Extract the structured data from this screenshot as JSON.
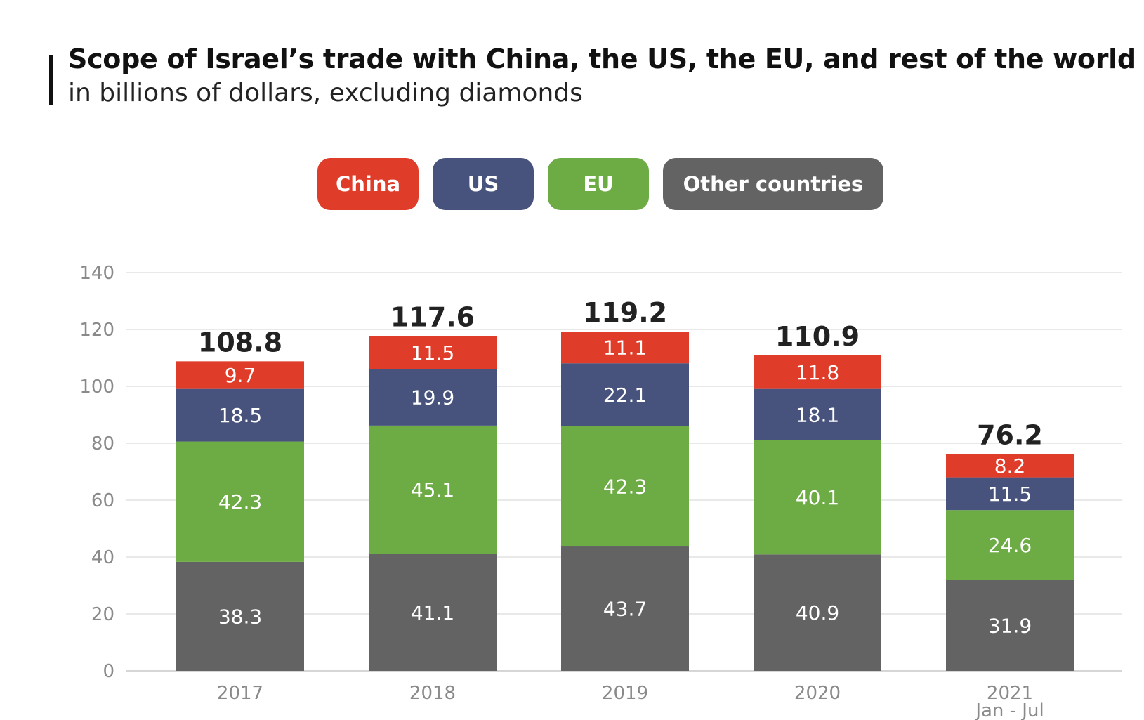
{
  "header": {
    "title": "Scope of Israel’s trade with China, the US, the EU, and rest of the world",
    "subtitle": "in billions of dollars, excluding diamonds"
  },
  "legend": {
    "items": [
      {
        "label": "China",
        "color": "#e03c2a"
      },
      {
        "label": "US",
        "color": "#47537c"
      },
      {
        "label": "EU",
        "color": "#6dab45"
      },
      {
        "label": "Other countries",
        "color": "#636363"
      }
    ]
  },
  "chart_data": {
    "type": "bar",
    "stacked": true,
    "categories": [
      "2017",
      "2018",
      "2019",
      "2020",
      "2021"
    ],
    "category_sublabels": [
      "",
      "",
      "",
      "",
      "Jan - Jul"
    ],
    "series": [
      {
        "name": "Other countries",
        "color": "#636363",
        "values": [
          38.3,
          41.1,
          43.7,
          40.9,
          31.9
        ]
      },
      {
        "name": "EU",
        "color": "#6dab45",
        "values": [
          42.3,
          45.1,
          42.3,
          40.1,
          24.6
        ]
      },
      {
        "name": "US",
        "color": "#47537c",
        "values": [
          18.5,
          19.9,
          22.1,
          18.1,
          11.5
        ]
      },
      {
        "name": "China",
        "color": "#e03c2a",
        "values": [
          9.7,
          11.5,
          11.1,
          11.8,
          8.2
        ]
      }
    ],
    "totals": [
      "108.8",
      "117.6",
      "119.2",
      "110.9",
      "76.2"
    ],
    "yticks": [
      0,
      20,
      40,
      60,
      80,
      100,
      120,
      140
    ],
    "ylim": [
      0,
      140
    ],
    "grid": true,
    "legend_position": "top-center"
  }
}
